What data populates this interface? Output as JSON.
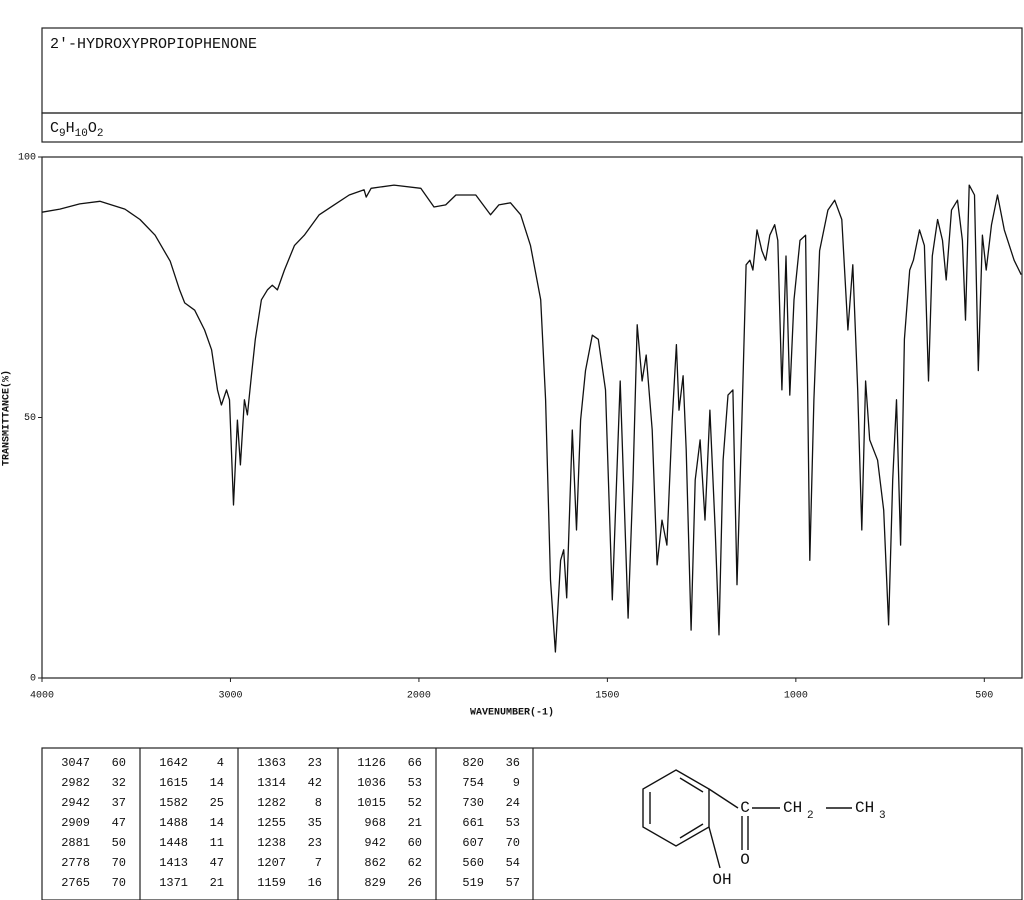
{
  "header": {
    "title": "2'-HYDROXYPROPIOPHENONE",
    "formula": [
      "C",
      "9",
      "H",
      "10",
      "O",
      "2"
    ]
  },
  "chart_data": {
    "type": "line",
    "y_label": "TRANSMITTANCE(%)",
    "x_label": "WAVENUMBER(-1)",
    "xlim": [
      4000,
      400
    ],
    "xticks": [
      4000,
      3000,
      2000,
      1500,
      1000,
      500
    ],
    "ylim": [
      0,
      100
    ],
    "yticks": [
      0,
      50,
      100
    ],
    "color": "#111111",
    "x": [
      4000,
      3905,
      3800,
      3693,
      3560,
      3480,
      3400,
      3320,
      3270,
      3243,
      3190,
      3137,
      3100,
      3069,
      3048,
      3021,
      3005,
      2984,
      2963,
      2947,
      2926,
      2910,
      2889,
      2868,
      2836,
      2804,
      2778,
      2751,
      2714,
      2661,
      2608,
      2529,
      2450,
      2370,
      2291,
      2280,
      2254,
      2132,
      1995,
      1960,
      1929,
      1902,
      1849,
      1810,
      1788,
      1757,
      1730,
      1704,
      1677,
      1664,
      1651,
      1638,
      1624,
      1616,
      1608,
      1593,
      1582,
      1571,
      1558,
      1540,
      1524,
      1505,
      1487,
      1466,
      1445,
      1432,
      1421,
      1408,
      1397,
      1381,
      1368,
      1355,
      1342,
      1328,
      1317,
      1310,
      1299,
      1291,
      1278,
      1267,
      1254,
      1241,
      1228,
      1214,
      1204,
      1193,
      1180,
      1167,
      1156,
      1143,
      1132,
      1122,
      1114,
      1103,
      1090,
      1080,
      1069,
      1056,
      1048,
      1037,
      1026,
      1016,
      1005,
      989,
      974,
      963,
      952,
      937,
      915,
      897,
      878,
      862,
      849,
      836,
      825,
      815,
      804,
      783,
      767,
      754,
      743,
      733,
      722,
      712,
      698,
      688,
      672,
      659,
      648,
      638,
      624,
      611,
      601,
      587,
      571,
      558,
      550,
      540,
      526,
      516,
      505,
      495,
      481,
      465,
      447,
      421,
      402
    ],
    "values": [
      89.4,
      90,
      91,
      91.5,
      90,
      88,
      85,
      80,
      74.5,
      72,
      70.6,
      66.8,
      63,
      55.3,
      52.4,
      55.3,
      53.4,
      33.2,
      49.5,
      40.9,
      53.4,
      50.5,
      58,
      65,
      72.6,
      74.5,
      75.4,
      74.5,
      78.3,
      83,
      85,
      88.9,
      90.8,
      92.7,
      93.7,
      92.3,
      94,
      94.6,
      94,
      90.4,
      90.8,
      92.7,
      92.7,
      88.9,
      90.8,
      91.2,
      88.9,
      83,
      72.6,
      53.4,
      18.8,
      5,
      22.6,
      24.6,
      15.4,
      47.6,
      28.4,
      49.5,
      59,
      65.8,
      65,
      55.3,
      15,
      57,
      11.5,
      38,
      67.8,
      57,
      62,
      47.6,
      21.7,
      30.3,
      25.5,
      49.5,
      64,
      51.4,
      58,
      43.8,
      9.2,
      38,
      45.7,
      30.3,
      51.4,
      28.4,
      8.3,
      41.8,
      54.3,
      55.3,
      17.9,
      49.5,
      79.3,
      80.2,
      78.3,
      86,
      82,
      80.2,
      85,
      87,
      84,
      55.3,
      81,
      54.3,
      72.6,
      84,
      85,
      22.6,
      53.4,
      82,
      89.8,
      91.7,
      88,
      66.8,
      79.3,
      55.3,
      28.4,
      57,
      45.7,
      41.8,
      32.2,
      10.2,
      38,
      53.4,
      25.5,
      65,
      78.3,
      80.2,
      86,
      83,
      57,
      81,
      88,
      84,
      76.4,
      89.8,
      91.7,
      84,
      68.7,
      94.6,
      92.7,
      59,
      85,
      78.3,
      87,
      92.7,
      86,
      80.2,
      77.4
    ]
  },
  "peak_table": {
    "columns": [
      [
        [
          3047,
          60
        ],
        [
          2982,
          32
        ],
        [
          2942,
          37
        ],
        [
          2909,
          47
        ],
        [
          2881,
          50
        ],
        [
          2778,
          70
        ],
        [
          2765,
          70
        ]
      ],
      [
        [
          1642,
          4
        ],
        [
          1615,
          14
        ],
        [
          1582,
          25
        ],
        [
          1488,
          14
        ],
        [
          1448,
          11
        ],
        [
          1413,
          47
        ],
        [
          1371,
          21
        ]
      ],
      [
        [
          1363,
          23
        ],
        [
          1314,
          42
        ],
        [
          1282,
          8
        ],
        [
          1255,
          35
        ],
        [
          1238,
          23
        ],
        [
          1207,
          7
        ],
        [
          1159,
          16
        ]
      ],
      [
        [
          1126,
          66
        ],
        [
          1036,
          53
        ],
        [
          1015,
          52
        ],
        [
          968,
          21
        ],
        [
          942,
          60
        ],
        [
          862,
          62
        ],
        [
          829,
          26
        ]
      ],
      [
        [
          820,
          36
        ],
        [
          754,
          9
        ],
        [
          730,
          24
        ],
        [
          661,
          53
        ],
        [
          607,
          70
        ],
        [
          560,
          54
        ],
        [
          519,
          57
        ]
      ]
    ]
  },
  "structure": {
    "carbonyl_c": "C",
    "ch2": "CH",
    "ch2_sub": "2",
    "ch3": "CH",
    "ch3_sub": "3",
    "o": "O",
    "oh": "OH"
  }
}
